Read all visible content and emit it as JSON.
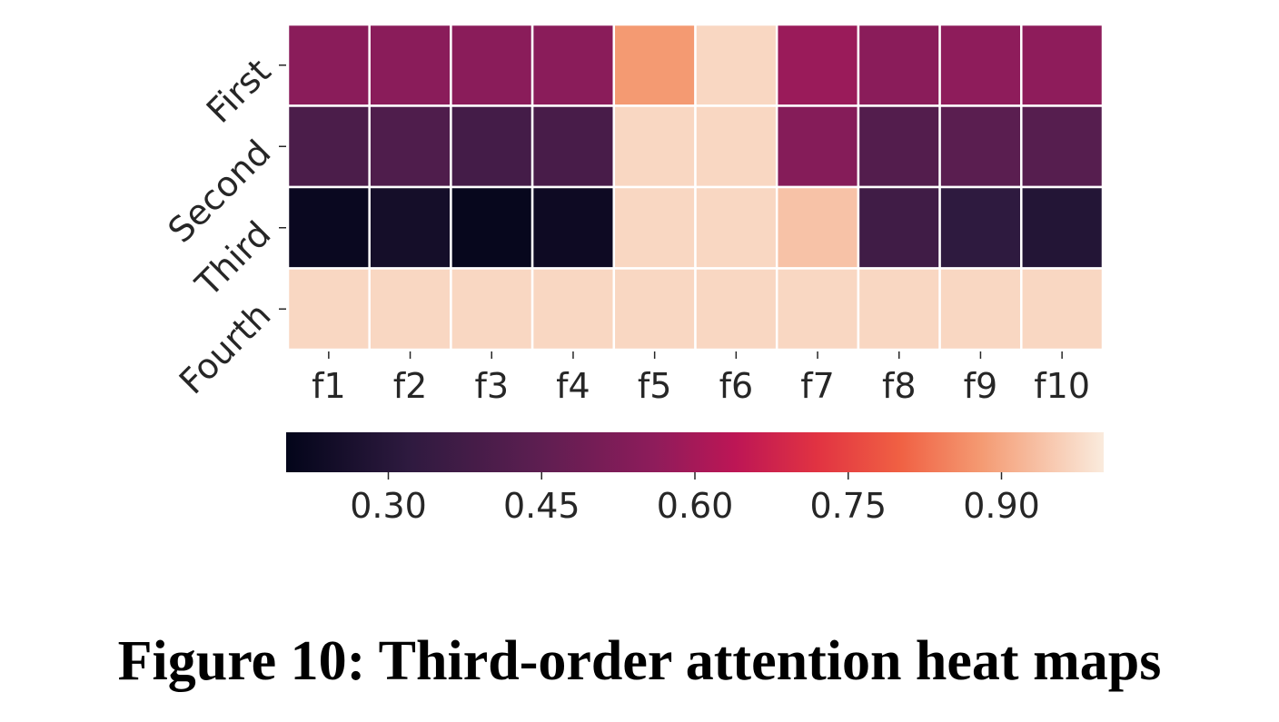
{
  "chart_data": {
    "type": "heatmap",
    "title": "",
    "xlabel": "",
    "ylabel": "",
    "x_categories": [
      "f1",
      "f2",
      "f3",
      "f4",
      "f5",
      "f6",
      "f7",
      "f8",
      "f9",
      "f10"
    ],
    "y_categories": [
      "First",
      "Second",
      "Third",
      "Fourth"
    ],
    "values": [
      [
        0.55,
        0.55,
        0.55,
        0.55,
        0.88,
        0.97,
        0.58,
        0.55,
        0.56,
        0.56
      ],
      [
        0.4,
        0.41,
        0.38,
        0.39,
        0.97,
        0.97,
        0.54,
        0.42,
        0.44,
        0.43
      ],
      [
        0.22,
        0.25,
        0.21,
        0.23,
        0.97,
        0.97,
        0.94,
        0.37,
        0.32,
        0.29
      ],
      [
        0.97,
        0.97,
        0.97,
        0.97,
        0.97,
        0.97,
        0.97,
        0.97,
        0.97,
        0.97
      ]
    ],
    "colormap": "rocket",
    "colorbar": {
      "orientation": "horizontal",
      "range": [
        0.2,
        1.0
      ],
      "ticks": [
        0.3,
        0.45,
        0.6,
        0.75,
        0.9
      ],
      "tick_labels": [
        "0.30",
        "0.45",
        "0.60",
        "0.75",
        "0.90"
      ]
    },
    "grid": true
  },
  "caption": "Figure 10: Third-order attention heat maps"
}
